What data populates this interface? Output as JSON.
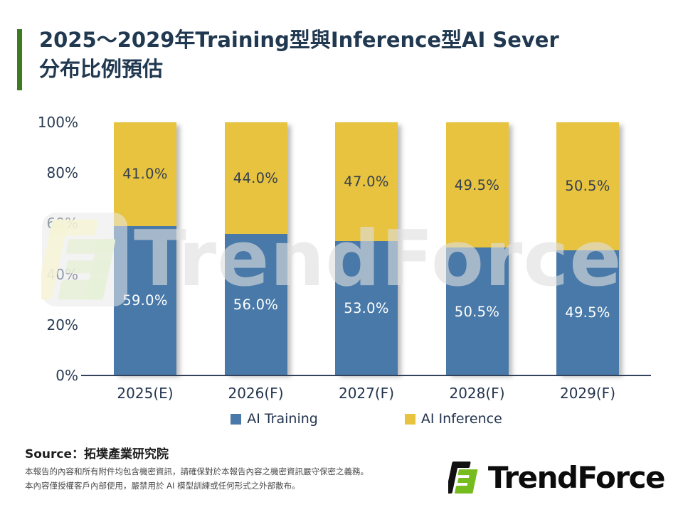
{
  "header": {
    "title_line1": "2025～2029年Training型與Inference型AI Sever",
    "title_line2": "分布比例預估",
    "accent_color": "#3E7B1F"
  },
  "chart_data": {
    "type": "bar",
    "stacked": true,
    "title": "2025～2029年Training型與Inference型AI Sever分布比例預估",
    "categories": [
      "2025(E)",
      "2026(F)",
      "2027(F)",
      "2028(F)",
      "2029(F)"
    ],
    "series": [
      {
        "name": "AI Training",
        "color": "#4879A8",
        "label_color": "#FFFFFF",
        "values": [
          59.0,
          56.0,
          53.0,
          50.5,
          49.5
        ],
        "labels": [
          "59.0%",
          "56.0%",
          "53.0%",
          "50.5%",
          "49.5%"
        ]
      },
      {
        "name": "AI Inference",
        "color": "#E8C33F",
        "label_color": "#333F4E",
        "values": [
          41.0,
          44.0,
          47.0,
          49.5,
          50.5
        ],
        "labels": [
          "41.0%",
          "44.0%",
          "47.0%",
          "49.5%",
          "50.5%"
        ]
      }
    ],
    "y_ticks": [
      "100%",
      "80%",
      "60%",
      "40%",
      "20%",
      "0%"
    ],
    "ylim": [
      0,
      100
    ],
    "xlabel": "",
    "ylabel": "",
    "grid": false,
    "legend_position": "bottom"
  },
  "watermark": {
    "text": "TrendForce"
  },
  "footer": {
    "source": "Source：拓墣產業研究院",
    "disclaimer_line1": "本報告的內容和所有附件均包含機密資訊，請確保對於本報告內容之機密資訊嚴守保密之義務。",
    "disclaimer_line2": "本內容僅授權客戶內部使用，嚴禁用於 AI 模型訓練或任何形式之外部散布。",
    "logo_text": "TrendForce"
  }
}
